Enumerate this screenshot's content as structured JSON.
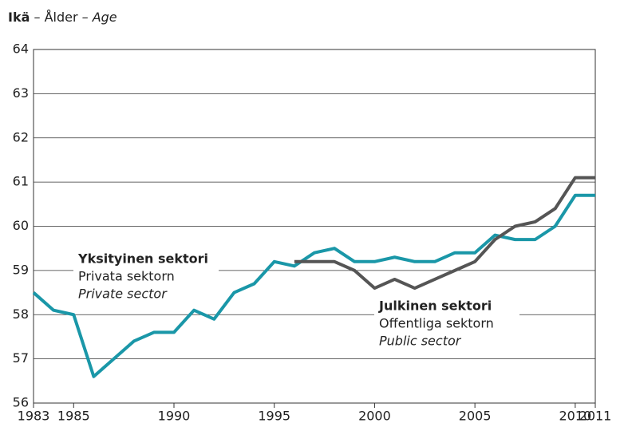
{
  "chart_data": {
    "type": "line",
    "title": {
      "bold": "Ikä",
      "normal": " – Ålder – ",
      "italic": "Age"
    },
    "x": [
      1983,
      1984,
      1985,
      1986,
      1987,
      1988,
      1989,
      1990,
      1991,
      1992,
      1993,
      1994,
      1995,
      1996,
      1997,
      1998,
      1999,
      2000,
      2001,
      2002,
      2003,
      2004,
      2005,
      2006,
      2007,
      2008,
      2009,
      2010,
      2011
    ],
    "series": [
      {
        "name": "Yksityinen sektori",
        "translations": [
          "Privata sektorn",
          "Private sector"
        ],
        "color": "#1a97a8",
        "values": [
          58.5,
          58.1,
          58.0,
          56.6,
          57.0,
          57.4,
          57.6,
          57.6,
          58.1,
          57.9,
          58.5,
          58.7,
          59.2,
          59.1,
          59.4,
          59.5,
          59.2,
          59.2,
          59.3,
          59.2,
          59.2,
          59.4,
          59.4,
          59.8,
          59.7,
          59.7,
          60.0,
          60.7,
          60.7
        ]
      },
      {
        "name": "Julkinen sektori",
        "translations": [
          "Offentliga sektorn",
          "Public sector"
        ],
        "color": "#555555",
        "values": [
          null,
          null,
          null,
          null,
          null,
          null,
          null,
          null,
          null,
          null,
          null,
          null,
          null,
          59.2,
          59.2,
          59.2,
          59.0,
          58.6,
          58.8,
          58.6,
          58.8,
          59.0,
          59.2,
          59.7,
          60.0,
          60.1,
          60.4,
          61.1,
          61.1
        ]
      }
    ],
    "xlim": [
      1983,
      2011
    ],
    "xticks": [
      1983,
      1985,
      1990,
      1995,
      2000,
      2005,
      2010,
      2011
    ],
    "ylim": [
      56,
      64
    ],
    "yticks": [
      56,
      57,
      58,
      59,
      60,
      61,
      62,
      63,
      64
    ],
    "grid": true
  }
}
